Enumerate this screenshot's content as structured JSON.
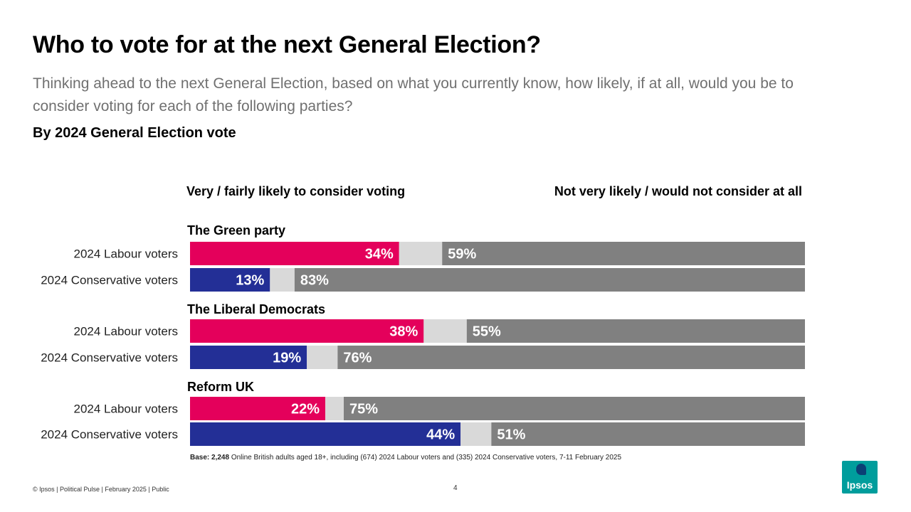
{
  "header": {
    "title": "Who to vote for at the next General Election?",
    "subtitle": "Thinking ahead to the next General Election, based on what you currently know, how likely, if at all, would you be to consider voting for each of the following parties?",
    "section": "By 2024 General Election vote"
  },
  "columns": {
    "left": "Very / fairly likely to consider voting",
    "right": "Not very likely / would not consider at all"
  },
  "chart_data": {
    "type": "bar",
    "orientation": "horizontal-stacked",
    "title": "Who to vote for at the next General Election?",
    "xlim": [
      0,
      100
    ],
    "legend": "none",
    "grid": false,
    "groups": [
      {
        "name": "The Green party",
        "rows": [
          {
            "label": "2024 Labour voters",
            "voter": "labour",
            "likely": 34,
            "not_likely": 59
          },
          {
            "label": "2024 Conservative voters",
            "voter": "conservative",
            "likely": 13,
            "not_likely": 83
          }
        ]
      },
      {
        "name": "The Liberal Democrats",
        "rows": [
          {
            "label": "2024 Labour voters",
            "voter": "labour",
            "likely": 38,
            "not_likely": 55
          },
          {
            "label": "2024 Conservative voters",
            "voter": "conservative",
            "likely": 19,
            "not_likely": 76
          }
        ]
      },
      {
        "name": "Reform UK",
        "rows": [
          {
            "label": "2024 Labour voters",
            "voter": "labour",
            "likely": 22,
            "not_likely": 75
          },
          {
            "label": "2024 Conservative voters",
            "voter": "conservative",
            "likely": 44,
            "not_likely": 51
          }
        ]
      }
    ],
    "colors": {
      "labour": "#e4005b",
      "conservative": "#232f96",
      "neither": "#d9d9d9",
      "not_likely": "#808080"
    },
    "value_suffix": "%"
  },
  "base": {
    "label": "Base: 2,248",
    "text": "Online British adults aged 18+, including (674) 2024 Labour voters and (335) 2024 Conservative voters, 7-11 February 2025"
  },
  "footer": {
    "text": "© Ipsos | Political Pulse | February 2025 | Public",
    "page": "4"
  },
  "logo": {
    "text": "Ipsos",
    "color": "#009d9c"
  }
}
